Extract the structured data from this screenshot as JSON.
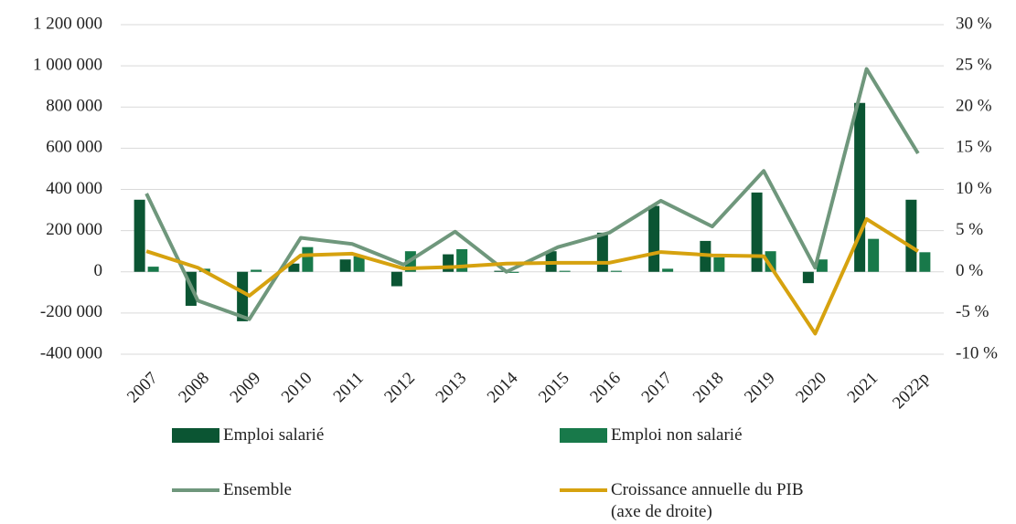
{
  "chart_data": {
    "type": "bar",
    "categories": [
      "2007",
      "2008",
      "2009",
      "2010",
      "2011",
      "2012",
      "2013",
      "2014",
      "2015",
      "2016",
      "2017",
      "2018",
      "2019",
      "2020",
      "2021",
      "2022p"
    ],
    "series": [
      {
        "name": "Emploi salarié",
        "type": "bar",
        "color": "#0b5533",
        "values": [
          350000,
          -165000,
          -240000,
          40000,
          60000,
          -70000,
          85000,
          5000,
          100000,
          190000,
          320000,
          150000,
          385000,
          -55000,
          820000,
          350000
        ]
      },
      {
        "name": "Emploi non salarié",
        "type": "bar",
        "color": "#18794a",
        "values": [
          25000,
          15000,
          10000,
          120000,
          75000,
          100000,
          110000,
          -5000,
          5000,
          5000,
          15000,
          70000,
          100000,
          60000,
          160000,
          95000
        ]
      },
      {
        "name": "Ensemble",
        "type": "line",
        "color": "#6f977c",
        "values": [
          380000,
          -140000,
          -230000,
          165000,
          135000,
          35000,
          195000,
          0,
          120000,
          190000,
          345000,
          220000,
          490000,
          20000,
          985000,
          575000
        ]
      },
      {
        "name": "Croissance annuelle du PIB (axe de droite)",
        "type": "line",
        "axis": "y2",
        "color": "#d6a20f",
        "values": [
          2.5,
          0.5,
          -2.9,
          2.0,
          2.2,
          0.4,
          0.6,
          1.0,
          1.1,
          1.1,
          2.4,
          2.0,
          1.9,
          -7.5,
          6.4,
          2.5
        ]
      }
    ],
    "ylim": [
      -400000,
      1200000
    ],
    "yticks": [
      {
        "value": -400000,
        "label": "-400 000"
      },
      {
        "value": -200000,
        "label": "-200 000"
      },
      0,
      {
        "value": 200000,
        "label": "200 000"
      },
      {
        "value": 400000,
        "label": "400 000"
      },
      {
        "value": 600000,
        "label": "600 000"
      },
      {
        "value": 800000,
        "label": "800 000"
      },
      {
        "value": 1000000,
        "label": "1 000 000"
      },
      {
        "value": 1200000,
        "label": "1 200 000"
      }
    ],
    "y2lim": [
      -10,
      30
    ],
    "y2ticks": [
      {
        "value": -10,
        "label": "-10 %"
      },
      {
        "value": -5,
        "label": "-5 %"
      },
      {
        "value": 0,
        "label": "0 %"
      },
      {
        "value": 5,
        "label": "5 %"
      },
      {
        "value": 10,
        "label": "10 %"
      },
      {
        "value": 15,
        "label": "15 %"
      },
      {
        "value": 20,
        "label": "20 %"
      },
      {
        "value": 25,
        "label": "25 %"
      },
      {
        "value": 30,
        "label": "30 %"
      }
    ],
    "grid": true
  }
}
